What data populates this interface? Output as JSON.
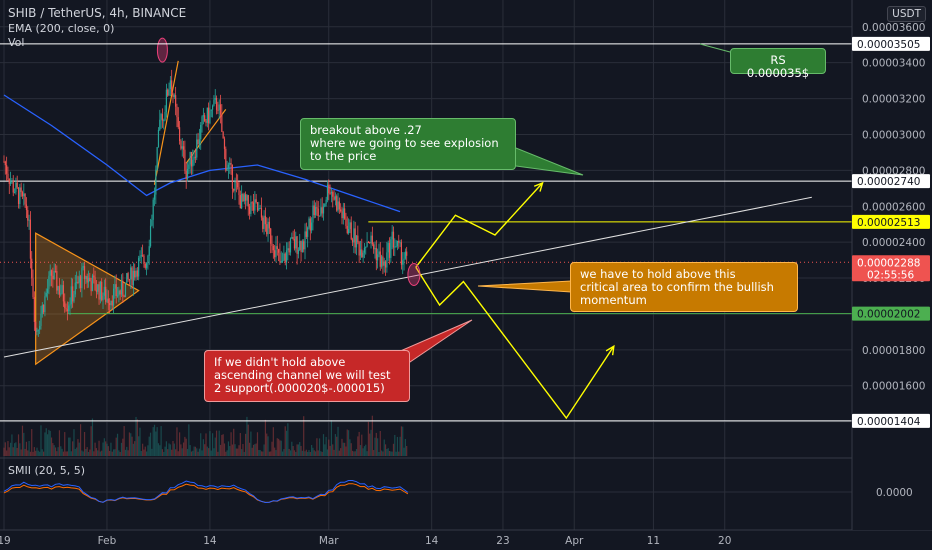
{
  "header": {
    "title": "SHIB / TetherUS, 4h, BINANCE",
    "indicator_ema": "EMA (200, close, 0)",
    "indicator_vol": "Vol",
    "indicator_smii": "SMII (20, 5, 5)",
    "currency": "USDT"
  },
  "axis": {
    "price_ticks": [
      "0.00003600",
      "0.00003400",
      "0.00003200",
      "0.00003000",
      "0.00002800",
      "0.00002600",
      "0.00002400",
      "0.00002200",
      "0.00002000",
      "0.00001800",
      "0.00001600",
      "0.00001400"
    ],
    "smii_tick": "0.0000",
    "x_ticks": [
      "19",
      "Feb",
      "14",
      "Mar",
      "14",
      "23",
      "Apr",
      "11",
      "20"
    ]
  },
  "price_tags": [
    {
      "label": "0.00003505",
      "value": 3.505e-05,
      "bg": "#ffffff",
      "fg": "#131722"
    },
    {
      "label": "0.00002740",
      "value": 2.74e-05,
      "bg": "#ffffff",
      "fg": "#131722"
    },
    {
      "label": "0.00002513",
      "value": 2.513e-05,
      "bg": "#ffff00",
      "fg": "#131722"
    },
    {
      "label": "0.00002288",
      "value": 2.288e-05,
      "bg": "#ef5350",
      "fg": "#ffffff",
      "sub": "02:55:56"
    },
    {
      "label": "0.00002002",
      "value": 2.002e-05,
      "bg": "#4caf50",
      "fg": "#131722"
    },
    {
      "label": "0.00001404",
      "value": 1.404e-05,
      "bg": "#ffffff",
      "fg": "#131722"
    }
  ],
  "callouts": {
    "rs": "RS 0.000035$",
    "breakout": [
      "breakout above .27",
      "where we going to see explosion",
      "to the price"
    ],
    "hold": [
      "we have to hold above this",
      "critical area to confirm the bullish",
      "momentum"
    ],
    "fail": [
      "If we didn't hold above",
      "ascending channel we will test",
      "2 support(.000020$-.000015)"
    ]
  },
  "colors": {
    "background": "#131722",
    "grid": "#2a2e39",
    "up": "#26a69a",
    "down": "#ef5350",
    "ema": "#2962ff",
    "annotation": "#ffff00",
    "triangle": "#f7931a",
    "smii_a": "#2962ff",
    "smii_b": "#ff6d00"
  },
  "chart_data": {
    "type": "candlestick",
    "title": "SHIB / TetherUS, 4h, BINANCE",
    "ylim": [
      1.32e-05,
      3.66e-05
    ],
    "last_price": 2.288e-05,
    "levels": [
      3.505e-05,
      2.74e-05,
      2.513e-05,
      2.002e-05,
      1.404e-05
    ],
    "price_anchors": [
      {
        "date": "Jan 19",
        "price": 2.85e-05
      },
      {
        "date": "Jan 20",
        "price": 2.72e-05
      },
      {
        "date": "Jan 22",
        "price": 2.58e-05
      },
      {
        "date": "Jan 23",
        "price": 1.9e-05
      },
      {
        "date": "Jan 25",
        "price": 2.22e-05
      },
      {
        "date": "Jan 27",
        "price": 2.06e-05
      },
      {
        "date": "Jan 29",
        "price": 2.22e-05
      },
      {
        "date": "Feb 1",
        "price": 2.09e-05
      },
      {
        "date": "Feb 3",
        "price": 2.13e-05
      },
      {
        "date": "Feb 5",
        "price": 2.28e-05
      },
      {
        "date": "Feb 6",
        "price": 2.3e-05
      },
      {
        "date": "Feb 7",
        "price": 2.68e-05
      },
      {
        "date": "Feb 8",
        "price": 3.25e-05
      },
      {
        "date": "Feb 8",
        "price": 3.08e-05
      },
      {
        "date": "Feb 9",
        "price": 3.32e-05
      },
      {
        "date": "Feb 10",
        "price": 3.02e-05
      },
      {
        "date": "Feb 11",
        "price": 2.8e-05
      },
      {
        "date": "Feb 12",
        "price": 2.9e-05
      },
      {
        "date": "Feb 13",
        "price": 3.05e-05
      },
      {
        "date": "Feb 15",
        "price": 3.18e-05
      },
      {
        "date": "Feb 16",
        "price": 2.85e-05
      },
      {
        "date": "Feb 18",
        "price": 2.62e-05
      },
      {
        "date": "Feb 20",
        "price": 2.58e-05
      },
      {
        "date": "Feb 22",
        "price": 2.4e-05
      },
      {
        "date": "Feb 23",
        "price": 2.26e-05
      },
      {
        "date": "Feb 24",
        "price": 2.38e-05
      },
      {
        "date": "Feb 26",
        "price": 2.4e-05
      },
      {
        "date": "Feb 27",
        "price": 2.58e-05
      },
      {
        "date": "Feb 28",
        "price": 2.55e-05
      },
      {
        "date": "Mar 1",
        "price": 2.72e-05
      },
      {
        "date": "Mar 3",
        "price": 2.52e-05
      },
      {
        "date": "Mar 5",
        "price": 2.36e-05
      },
      {
        "date": "Mar 6",
        "price": 2.43e-05
      },
      {
        "date": "Mar 8",
        "price": 2.26e-05
      },
      {
        "date": "Mar 9",
        "price": 2.42e-05
      },
      {
        "date": "Mar 10",
        "price": 2.34e-05
      },
      {
        "date": "Mar 11",
        "price": 2.288e-05
      }
    ],
    "ema_200": [
      {
        "date": "Jan 19",
        "value": 3.22e-05
      },
      {
        "date": "Jan 25",
        "value": 3.05e-05
      },
      {
        "date": "Feb 1",
        "value": 2.83e-05
      },
      {
        "date": "Feb 6",
        "value": 2.66e-05
      },
      {
        "date": "Feb 9",
        "value": 2.73e-05
      },
      {
        "date": "Feb 14",
        "value": 2.8e-05
      },
      {
        "date": "Feb 20",
        "value": 2.83e-05
      },
      {
        "date": "Feb 26",
        "value": 2.75e-05
      },
      {
        "date": "Mar 4",
        "value": 2.66e-05
      },
      {
        "date": "Mar 10",
        "value": 2.57e-05
      }
    ],
    "projections": {
      "bullish": [
        {
          "date": "Mar 12",
          "price": 2.26e-05
        },
        {
          "date": "Mar 17",
          "price": 2.55e-05
        },
        {
          "date": "Mar 22",
          "price": 2.44e-05
        },
        {
          "date": "Mar 28",
          "price": 2.73e-05
        }
      ],
      "pullback": [
        {
          "date": "Mar 12",
          "price": 2.26e-05
        },
        {
          "date": "Mar 15",
          "price": 2.05e-05
        },
        {
          "date": "Mar 18",
          "price": 2.18e-05
        },
        {
          "date": "Mar 31",
          "price": 1.42e-05
        },
        {
          "date": "Apr 6",
          "price": 1.82e-05
        }
      ]
    },
    "ascending_channel": [
      {
        "date": "Jan 19",
        "price": 1.76e-05
      },
      {
        "date": "May 1",
        "price": 2.65e-05
      }
    ],
    "smii": "oscillator, two series oscillating around 0.0000"
  }
}
